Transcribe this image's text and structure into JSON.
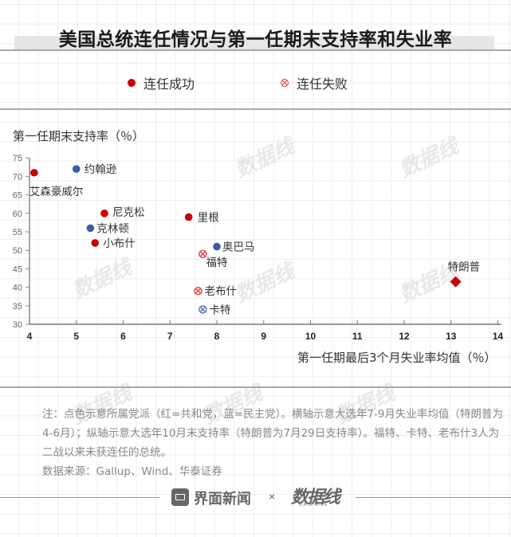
{
  "title": "美国总统连任情况与第一任期末支持率和失业率",
  "legend": [
    {
      "label": "连任成功",
      "marker": "filled-dot",
      "color": "#cc0000"
    },
    {
      "label": "连任失败",
      "marker": "circle-x",
      "color": "#cc0000"
    }
  ],
  "colors": {
    "republican": "#cc0000",
    "democrat": "#3a5ea8",
    "republican_fail": "#e03030",
    "democrat_fail": "#4a6ab8"
  },
  "chart_data": {
    "type": "scatter",
    "title": "美国总统连任情况与第一任期末支持率和失业率",
    "xlabel": "第一任期最后3个月失业率均值（％）",
    "ylabel": "第一任期末支持率（％）",
    "xlim": [
      4,
      14
    ],
    "ylim": [
      30,
      75
    ],
    "x_ticks": [
      "4",
      "5",
      "6",
      "7",
      "8",
      "9",
      "10",
      "11",
      "12",
      "13",
      "14"
    ],
    "y_ticks": [
      "30",
      "35",
      "40",
      "45",
      "50",
      "55",
      "60",
      "65",
      "70",
      "75"
    ],
    "grid": false,
    "legend_position": "top",
    "points": [
      {
        "name": "艾森豪威尔",
        "x": 4.1,
        "y": 71,
        "party": "republican",
        "reelected": true,
        "marker": "dot"
      },
      {
        "name": "约翰逊",
        "x": 5.0,
        "y": 72,
        "party": "democrat",
        "reelected": true,
        "marker": "dot"
      },
      {
        "name": "尼克松",
        "x": 5.6,
        "y": 60,
        "party": "republican",
        "reelected": true,
        "marker": "dot"
      },
      {
        "name": "克林顿",
        "x": 5.3,
        "y": 56,
        "party": "democrat",
        "reelected": true,
        "marker": "dot"
      },
      {
        "name": "小布什",
        "x": 5.4,
        "y": 52,
        "party": "republican",
        "reelected": true,
        "marker": "dot"
      },
      {
        "name": "里根",
        "x": 7.4,
        "y": 59,
        "party": "republican",
        "reelected": true,
        "marker": "dot"
      },
      {
        "name": "奥巴马",
        "x": 8.0,
        "y": 51,
        "party": "democrat",
        "reelected": true,
        "marker": "dot"
      },
      {
        "name": "福特",
        "x": 7.7,
        "y": 49,
        "party": "republican",
        "reelected": false,
        "marker": "circle-x"
      },
      {
        "name": "老布什",
        "x": 7.6,
        "y": 39,
        "party": "republican",
        "reelected": false,
        "marker": "circle-x"
      },
      {
        "name": "卡特",
        "x": 7.7,
        "y": 34,
        "party": "democrat",
        "reelected": false,
        "marker": "circle-x"
      },
      {
        "name": "特朗普",
        "x": 13.1,
        "y": 41.5,
        "party": "republican",
        "reelected": null,
        "marker": "diamond"
      }
    ]
  },
  "note": "注：点色示意所属党派（红=共和党，蓝=民主党）。横轴示意大选年7-9月失业率均值（特朗普为4-6月）；纵轴示意大选年10月末支持率（特朗普为7月29日支持率）。福特、卡特、老布什3人为二战以来未获连任的总统。",
  "source": "数据来源：Gallup、Wind、华泰证券",
  "footer": {
    "brand1": "界面新闻",
    "times": "×",
    "brand2": "数据线",
    "brand2_sub": "DATA WIRE"
  },
  "watermark": "数据线"
}
